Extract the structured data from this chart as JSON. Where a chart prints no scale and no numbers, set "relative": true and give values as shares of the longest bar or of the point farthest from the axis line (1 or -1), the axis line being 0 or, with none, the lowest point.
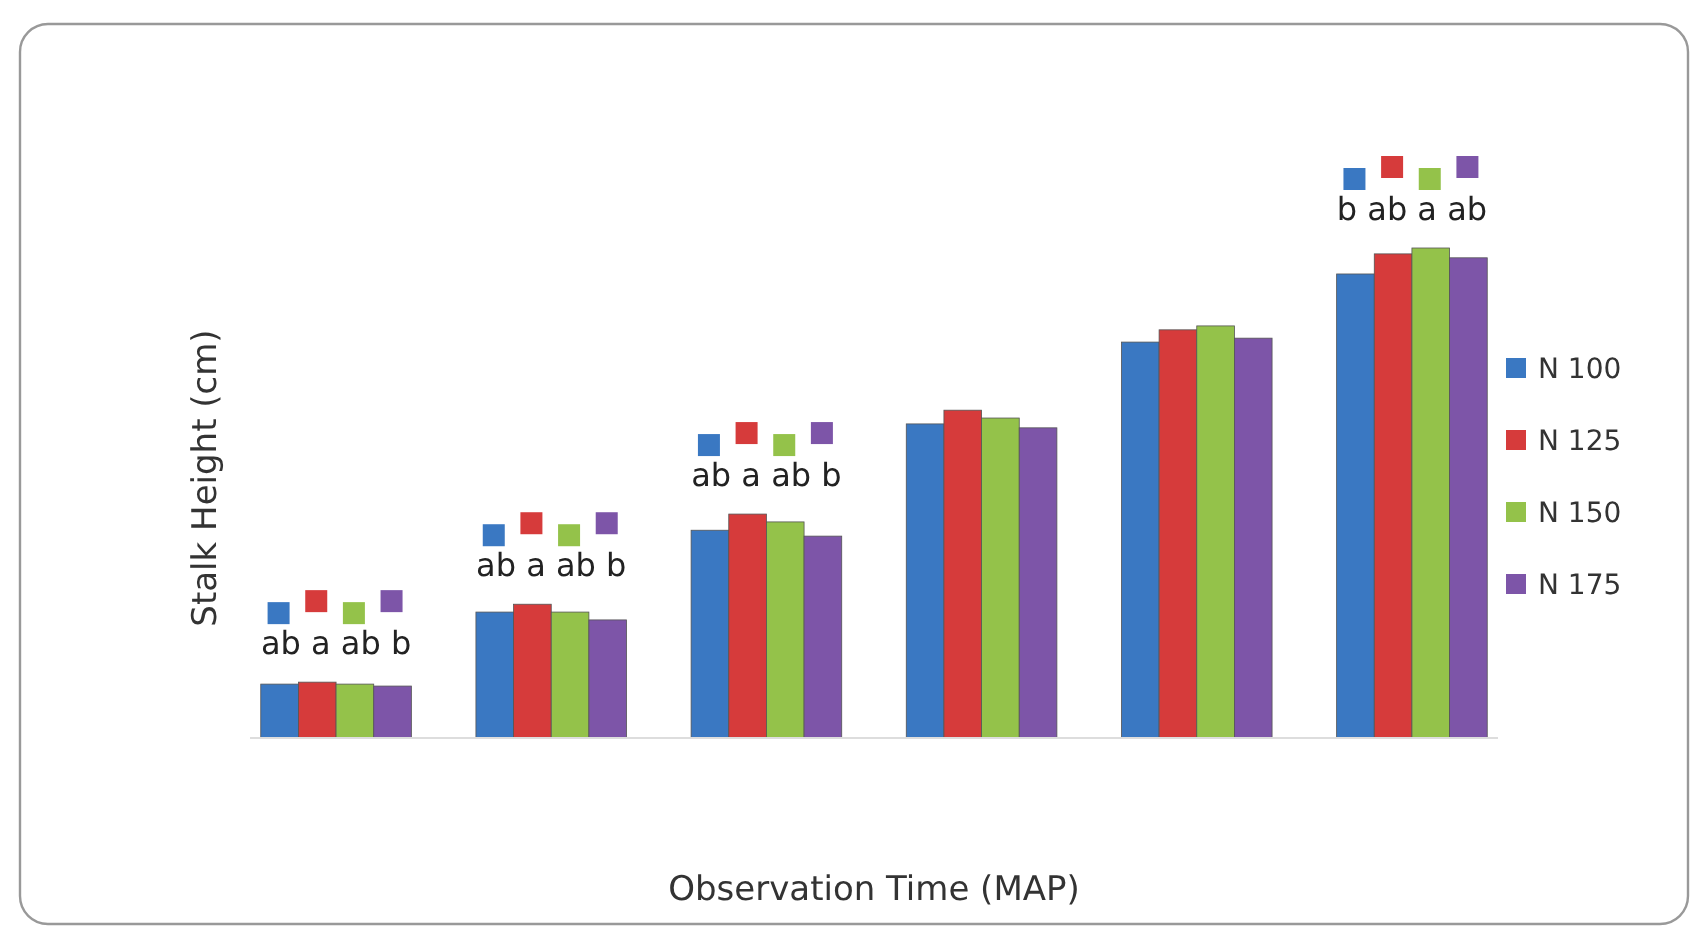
{
  "chart_data": {
    "type": "bar",
    "relative": true,
    "xlabel": "Observation Time (MAP)",
    "ylabel": "Stalk Height (cm)",
    "categories": [
      null,
      null,
      null,
      null,
      null,
      null
    ],
    "series": [
      {
        "name": "N 100",
        "color": "#3a78c2",
        "values": [
          0.11,
          0.257,
          0.424,
          0.641,
          0.808,
          0.947
        ]
      },
      {
        "name": "N 125",
        "color": "#d63b3b",
        "values": [
          0.114,
          0.273,
          0.457,
          0.669,
          0.833,
          0.988
        ]
      },
      {
        "name": "N 150",
        "color": "#94c24a",
        "values": [
          0.11,
          0.257,
          0.441,
          0.653,
          0.841,
          1
        ]
      },
      {
        "name": "N 175",
        "color": "#7d55a8",
        "values": [
          0.106,
          0.241,
          0.412,
          0.633,
          0.816,
          0.98
        ]
      }
    ],
    "annotations": [
      "ab a ab b",
      "ab a ab b",
      "ab a ab b",
      "b ab a ab"
    ],
    "legend": "right"
  }
}
